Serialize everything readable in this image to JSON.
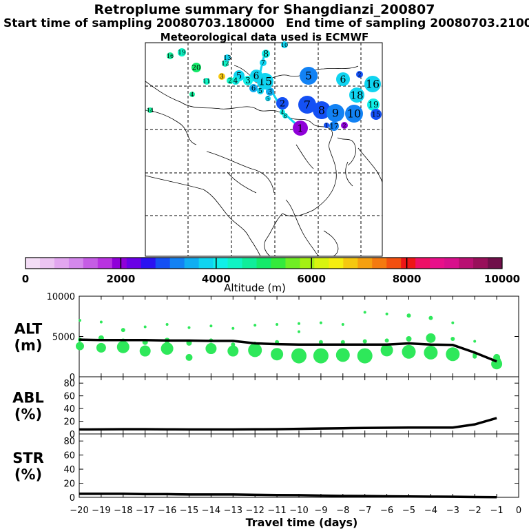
{
  "header": {
    "title": "Retroplume summary for Shangdianzi_200807",
    "start_label": "Start time of sampling 20080703.180000",
    "end_label": "End time of sampling 20080703.210000",
    "met_label": "Meteorological data used is ECMWF"
  },
  "colorbar": {
    "xlabel": "Altitude (m)",
    "ticks": [
      "0",
      "2000",
      "4000",
      "6000",
      "8000",
      "10000"
    ],
    "colors": [
      "#f4ddf6",
      "#ecc4f2",
      "#e2a6ef",
      "#d488ec",
      "#c55de5",
      "#b833e0",
      "#8f00d8",
      "#6a00e6",
      "#2a12f2",
      "#1450f4",
      "#1282f4",
      "#10aef2",
      "#10d4f0",
      "#10f0e8",
      "#10f4c4",
      "#10ee9a",
      "#14ea6a",
      "#34ea3c",
      "#70ee24",
      "#a4f014",
      "#d8f410",
      "#f6ee10",
      "#f6c810",
      "#f6a010",
      "#f47a10",
      "#f25010",
      "#ee1616",
      "#ee1066",
      "#e8108a",
      "#d8108c",
      "#b81072",
      "#98105a",
      "#70104a"
    ]
  },
  "map": {
    "clusters": [
      {
        "label": "1",
        "color": "#8f00d8"
      },
      {
        "label": "2",
        "color": "#1450f4"
      },
      {
        "label": "3",
        "color": "#10aef2"
      },
      {
        "label": "4",
        "color": "#10f0e8"
      },
      {
        "label": "5",
        "color": "#1282f4"
      },
      {
        "label": "6",
        "color": "#10d4f0"
      },
      {
        "label": "7",
        "color": "#1450f4"
      },
      {
        "label": "8",
        "color": "#1450f4"
      },
      {
        "label": "9",
        "color": "#1282f4"
      },
      {
        "label": "10",
        "color": "#1282f4"
      },
      {
        "label": "11",
        "color": "#10f4c4"
      },
      {
        "label": "12",
        "color": "#10f4c4"
      },
      {
        "label": "13",
        "color": "#10d4f0"
      },
      {
        "label": "14",
        "color": "#10ee9a"
      },
      {
        "label": "15",
        "color": "#10d4f0"
      },
      {
        "label": "16",
        "color": "#10d4f0"
      },
      {
        "label": "17",
        "color": "#1282f4"
      },
      {
        "label": "18",
        "color": "#10d4f0"
      },
      {
        "label": "19",
        "color": "#10f0e8"
      },
      {
        "label": "20",
        "color": "#14ea6a"
      }
    ]
  },
  "chart_data": [
    {
      "type": "scatter",
      "panel": "ALT",
      "ylabel": "ALT\n(m)",
      "ylabel_lines": [
        "ALT",
        "(m)"
      ],
      "ylim": [
        0,
        10000
      ],
      "yticks": [
        "10000",
        "5000",
        "0"
      ],
      "x": [
        -20,
        -19,
        -18,
        -17,
        -16,
        -15,
        -14,
        -13,
        -12,
        -11,
        -10,
        -9,
        -8,
        -7,
        -6,
        -5,
        -4,
        -3,
        -2,
        -1
      ],
      "mean_line": [
        4600,
        4550,
        4550,
        4550,
        4500,
        4500,
        4450,
        4450,
        4150,
        4050,
        4000,
        4000,
        4000,
        4000,
        4000,
        4150,
        4000,
        3950,
        3000,
        1900
      ],
      "point_color": "#2ee85a"
    },
    {
      "type": "line",
      "panel": "ABL",
      "ylabel_lines": [
        "ABL",
        "(%)"
      ],
      "ylim": [
        0,
        90
      ],
      "yticks": [
        "80",
        "60",
        "40",
        "20",
        "0"
      ],
      "x": [
        -20,
        -19,
        -18,
        -17,
        -16,
        -15,
        -14,
        -13,
        -12,
        -11,
        -10,
        -9,
        -8,
        -7,
        -6,
        -5,
        -4,
        -3,
        -2,
        -1
      ],
      "values": [
        7,
        7.2,
        7.5,
        7.5,
        7.2,
        7,
        7,
        7,
        7.3,
        7.5,
        8,
        8.5,
        9,
        9.5,
        9.8,
        10,
        10,
        10,
        15,
        25
      ]
    },
    {
      "type": "line",
      "panel": "STR",
      "ylabel_lines": [
        "STR",
        "(%)"
      ],
      "ylim": [
        0,
        90
      ],
      "yticks": [
        "80",
        "60",
        "40",
        "20",
        "0"
      ],
      "x": [
        -20,
        -19,
        -18,
        -17,
        -16,
        -15,
        -14,
        -13,
        -12,
        -11,
        -10,
        -9,
        -8,
        -7,
        -6,
        -5,
        -4,
        -3,
        -2,
        -1
      ],
      "values": [
        5,
        5,
        5,
        4.5,
        4.5,
        4,
        4,
        4,
        3.5,
        3.2,
        3,
        2.5,
        2,
        1.8,
        1.5,
        1.2,
        1,
        0.8,
        0.5,
        0.3
      ],
      "xlabel": "Travel time (days)",
      "xtick_labels": [
        "-20",
        "-19",
        "-18",
        "-17",
        "-16",
        "-15",
        "-14",
        "-13",
        "-12",
        "-11",
        "-10",
        "-9",
        "-8",
        "-7",
        "-6",
        "-5",
        "-4",
        "-3",
        "-2",
        "-1",
        "0"
      ]
    }
  ]
}
